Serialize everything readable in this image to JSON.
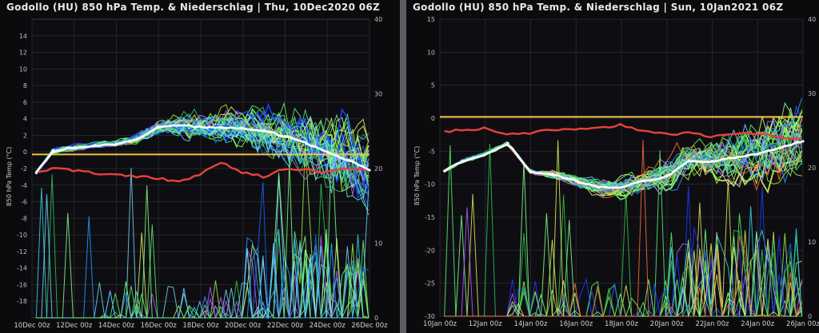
{
  "panels": [
    {
      "title": "Godollo  (HU)  850 hPa Temp. & Niederschlag | Thu, 10Dec2020 06Z"
    },
    {
      "title": "Godollo  (HU)  850 hPa Temp. & Niederschlag | Sun, 10Jan2021 06Z"
    }
  ],
  "chart_data": [
    {
      "type": "line",
      "title": "Godollo  (HU)  850 hPa Temp. & Niederschlag | Thu, 10Dec2020 06Z",
      "ylabel": "850 hPa Temp (°C)",
      "ylim": [
        -20,
        16
      ],
      "yticks": [
        -18,
        -16,
        -14,
        -12,
        -10,
        -8,
        -6,
        -4,
        -2,
        0,
        2,
        4,
        6,
        8,
        10,
        12,
        14
      ],
      "y2lim": [
        0,
        40
      ],
      "y2ticks": [
        0,
        10,
        20,
        30,
        40
      ],
      "xlim": [
        0,
        16
      ],
      "xticks": [
        0,
        2,
        4,
        6,
        8,
        10,
        12,
        14,
        16
      ],
      "xticklabels": [
        "10Dec 00z",
        "12Dec 00z",
        "14Dec 00z",
        "16Dec 00z",
        "18Dec 00z",
        "20Dec 00z",
        "22Dec 00z",
        "24Dec 00z",
        "26Dec 00z"
      ],
      "reference_line": {
        "y": -0.3,
        "color": "#f3c24a"
      },
      "grid": true,
      "series": [
        {
          "role": "mean",
          "color": "#ffffff",
          "x": [
            0.2,
            1,
            2,
            3,
            4,
            5,
            6,
            7,
            8,
            9,
            10,
            11,
            12,
            13,
            14,
            15,
            16
          ],
          "values": [
            -2.5,
            0.2,
            0.5,
            0.8,
            1.0,
            1.6,
            3.0,
            3.2,
            3.0,
            2.9,
            2.8,
            2.6,
            1.9,
            1.0,
            0.0,
            -1.0,
            -2.2
          ]
        },
        {
          "role": "control",
          "color": "#e8433a",
          "x": [
            0.2,
            1,
            2,
            3,
            4,
            5,
            6,
            7,
            8,
            9,
            10,
            11,
            12,
            13,
            14,
            15,
            16
          ],
          "values": [
            -2.6,
            -2.0,
            -2.2,
            -2.5,
            -2.8,
            -3.0,
            -3.2,
            -3.5,
            -2.7,
            -1.2,
            -2.5,
            -3.0,
            -2.0,
            -2.2,
            -2.5,
            -2.0,
            -2.3
          ]
        }
      ]
    },
    {
      "type": "line",
      "title": "Godollo  (HU)  850 hPa Temp. & Niederschlag | Sun, 10Jan2021 06Z",
      "ylabel": "850 hPa Temp (°C)",
      "ylim": [
        -30,
        15
      ],
      "yticks": [
        -30,
        -25,
        -20,
        -15,
        -10,
        -5,
        0,
        5,
        10,
        15
      ],
      "y2lim": [
        0,
        40
      ],
      "y2ticks": [
        0,
        10,
        20,
        30,
        40
      ],
      "xlim": [
        0,
        16
      ],
      "xticks": [
        0,
        2,
        4,
        6,
        8,
        10,
        12,
        14,
        16
      ],
      "xticklabels": [
        "10Jan 00z",
        "12Jan 00z",
        "14Jan 00z",
        "16Jan 00z",
        "18Jan 00z",
        "20Jan 00z",
        "22Jan 00z",
        "24Jan 00z",
        "26Jan 00z"
      ],
      "reference_line": {
        "y": 0.2,
        "color": "#f3c24a"
      },
      "grid": true,
      "series": [
        {
          "role": "mean",
          "color": "#ffffff",
          "x": [
            0.2,
            1,
            2,
            3,
            4,
            5,
            6,
            7,
            8,
            9,
            10,
            11,
            12,
            13,
            14,
            15,
            16
          ],
          "values": [
            -8.0,
            -6.5,
            -5.5,
            -3.8,
            -8.2,
            -8.5,
            -9.5,
            -10.5,
            -10.5,
            -9.5,
            -8.8,
            -6.5,
            -6.5,
            -6.0,
            -5.5,
            -4.5,
            -3.5
          ]
        },
        {
          "role": "control",
          "color": "#e8433a",
          "x": [
            0.2,
            1,
            2,
            3,
            4,
            5,
            6,
            7,
            8,
            9,
            10,
            11,
            12,
            13,
            14,
            15,
            16
          ],
          "values": [
            -2.0,
            -1.8,
            -1.5,
            -2.5,
            -2.2,
            -1.8,
            -1.6,
            -1.5,
            -1.0,
            -2.0,
            -2.5,
            -2.2,
            -2.8,
            -2.5,
            -2.2,
            -3.0,
            -3.2
          ]
        }
      ]
    }
  ]
}
